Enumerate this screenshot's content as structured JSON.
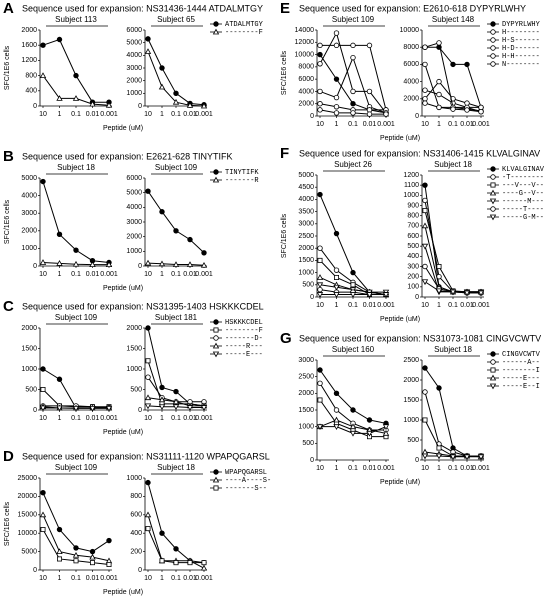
{
  "chart_data": [
    {
      "type": "line",
      "panel": "A",
      "title": "Sequence used for expansion: NS31436-1444 ATDALMTGY",
      "subtitle": "Subject 113",
      "ylabel": "SFC/1E6 cells",
      "xlabel": "Peptide (uM)",
      "categories": [
        "10",
        "1",
        "0.1",
        "0.01",
        "0.001"
      ],
      "ylim": [
        0,
        2000
      ],
      "yticks": [
        0,
        400,
        800,
        1200,
        1600,
        2000
      ],
      "series": [
        {
          "color": "#000000",
          "marker": "circle-filled",
          "values": [
            1600,
            1750,
            800,
            100,
            100
          ]
        },
        {
          "color": "#000000",
          "marker": "triangle-open",
          "values": [
            800,
            200,
            200,
            50,
            20
          ]
        }
      ]
    },
    {
      "type": "line",
      "subtitle": "Subject 65",
      "legend": true,
      "categories": [
        "10",
        "1",
        "0.1",
        "0.01",
        "0.001"
      ],
      "ylim": [
        0,
        6000
      ],
      "yticks": [
        0,
        1000,
        2000,
        3000,
        4000,
        5000,
        6000
      ],
      "series": [
        {
          "name": "ATDALMTGY",
          "color": "#000000",
          "marker": "circle-filled",
          "values": [
            5300,
            3000,
            1000,
            200,
            100
          ]
        },
        {
          "name": "--------F",
          "color": "#000000",
          "marker": "triangle-open",
          "values": [
            4300,
            1500,
            300,
            50,
            0
          ]
        }
      ]
    },
    {
      "type": "line",
      "panel": "B",
      "title": "Sequence used for expansion: E2621-628 TINYTIFK",
      "subtitle": "Subject 18",
      "ylabel": "SFC/1E6 cells",
      "xlabel": "Peptide (uM)",
      "categories": [
        "10",
        "1",
        "0.1",
        "0.01",
        "0.001"
      ],
      "ylim": [
        0,
        5000
      ],
      "yticks": [
        0,
        1000,
        2000,
        3000,
        4000,
        5000
      ],
      "series": [
        {
          "color": "#000000",
          "marker": "circle-filled",
          "values": [
            4800,
            1800,
            900,
            300,
            200
          ]
        },
        {
          "color": "#000000",
          "marker": "triangle-open",
          "values": [
            200,
            150,
            100,
            80,
            80
          ]
        }
      ]
    },
    {
      "type": "line",
      "subtitle": "Subject 109",
      "legend": true,
      "categories": [
        "10",
        "1",
        "0.1",
        "0.01",
        "0.001"
      ],
      "ylim": [
        0,
        6000
      ],
      "yticks": [
        0,
        1000,
        2000,
        3000,
        4000,
        5000,
        6000
      ],
      "series": [
        {
          "name": "TINYTIFK",
          "color": "#000000",
          "marker": "circle-filled",
          "values": [
            5100,
            3700,
            2400,
            1800,
            900
          ]
        },
        {
          "name": "-------R",
          "color": "#000000",
          "marker": "triangle-open",
          "values": [
            200,
            150,
            100,
            100,
            50
          ]
        }
      ]
    },
    {
      "type": "line",
      "panel": "C",
      "title": "Sequence used for expansion: NS31395-1403 HSKKKCDEL",
      "subtitle": "Subject 109",
      "xlabel": "Peptide (uM)",
      "categories": [
        "10",
        "1",
        "0.1",
        "0.01",
        "0.001"
      ],
      "ylim": [
        0,
        2000
      ],
      "yticks": [
        0,
        500,
        1000,
        1500,
        2000
      ],
      "series": [
        {
          "color": "#000000",
          "marker": "circle-filled",
          "values": [
            1000,
            750,
            50,
            50,
            50
          ]
        },
        {
          "color": "#000000",
          "marker": "square-open",
          "values": [
            500,
            100,
            80,
            80,
            80
          ]
        },
        {
          "color": "#000000",
          "marker": "circle-open",
          "values": [
            100,
            100,
            100,
            80,
            60
          ]
        },
        {
          "color": "#000000",
          "marker": "triangle-open",
          "values": [
            80,
            50,
            50,
            50,
            50
          ]
        },
        {
          "color": "#000000",
          "marker": "triangle-down-open",
          "values": [
            50,
            50,
            40,
            40,
            40
          ]
        }
      ]
    },
    {
      "type": "line",
      "subtitle": "Subject 181",
      "legend": true,
      "categories": [
        "10",
        "1",
        "0.1",
        "0.01",
        "0.001"
      ],
      "ylim": [
        0,
        2000
      ],
      "yticks": [
        0,
        500,
        1000,
        1500,
        2000
      ],
      "series": [
        {
          "name": "HSKKKCDEL",
          "color": "#000000",
          "marker": "circle-filled",
          "values": [
            2000,
            550,
            450,
            150,
            100
          ]
        },
        {
          "name": "--------F",
          "color": "#000000",
          "marker": "square-open",
          "values": [
            1200,
            150,
            150,
            150,
            100
          ]
        },
        {
          "name": "-------D-",
          "color": "#000000",
          "marker": "circle-open",
          "values": [
            800,
            300,
            200,
            200,
            200
          ]
        },
        {
          "name": "-----R---",
          "color": "#000000",
          "marker": "triangle-open",
          "values": [
            300,
            250,
            200,
            100,
            100
          ]
        },
        {
          "name": "-----E---",
          "color": "#000000",
          "marker": "triangle-down-open",
          "values": [
            100,
            80,
            80,
            60,
            60
          ]
        }
      ]
    },
    {
      "type": "line",
      "panel": "D",
      "title": "Sequence used for expansion: NS31111-1120 WPAPQGARSL",
      "subtitle": "Subject 109",
      "ylabel": "SFC/1E6 cells",
      "xlabel": "Peptide (uM)",
      "categories": [
        "10",
        "1",
        "0.1",
        "0.01",
        "0.001"
      ],
      "ylim": [
        0,
        25000
      ],
      "yticks": [
        0,
        5000,
        10000,
        15000,
        20000,
        25000
      ],
      "series": [
        {
          "color": "#000000",
          "marker": "circle-filled",
          "values": [
            21000,
            11000,
            6000,
            5000,
            8000
          ]
        },
        {
          "color": "#000000",
          "marker": "triangle-open",
          "values": [
            15000,
            5000,
            4000,
            3500,
            2500
          ]
        },
        {
          "color": "#000000",
          "marker": "square-open",
          "values": [
            11000,
            3000,
            2500,
            2000,
            1500
          ]
        }
      ]
    },
    {
      "type": "line",
      "subtitle": "Subject 18",
      "legend": true,
      "categories": [
        "10",
        "1",
        "0.1",
        "0.01",
        "0.001"
      ],
      "ylim": [
        0,
        1000
      ],
      "yticks": [
        0,
        200,
        400,
        600,
        800,
        1000
      ],
      "series": [
        {
          "name": "WPAPQGARSL",
          "color": "#000000",
          "marker": "circle-filled",
          "values": [
            950,
            400,
            230,
            100,
            80
          ]
        },
        {
          "name": "----A----S-",
          "color": "#000000",
          "marker": "triangle-open",
          "values": [
            600,
            100,
            100,
            100,
            20
          ]
        },
        {
          "name": "-------S--",
          "color": "#000000",
          "marker": "square-open",
          "values": [
            450,
            100,
            80,
            80,
            80
          ]
        }
      ]
    },
    {
      "type": "line",
      "panel": "E",
      "title": "Sequence used for expansion: E2610-618 DYPYRLWHY",
      "subtitle": "Subject 109",
      "ylabel": "SFC/1E6 cells",
      "xlabel": "Peptide (uM)",
      "categories": [
        "10",
        "1",
        "0.1",
        "0.01",
        "0.001"
      ],
      "ylim": [
        0,
        14000
      ],
      "yticks": [
        0,
        2000,
        4000,
        6000,
        8000,
        10000,
        12000,
        14000
      ],
      "series": [
        {
          "color": "#000000",
          "marker": "circle-filled",
          "values": [
            10000,
            6000,
            2000,
            1000,
            1000
          ]
        },
        {
          "color": "#000000",
          "marker": "circle-open",
          "values": [
            8500,
            13500,
            4000,
            4000,
            500
          ]
        },
        {
          "color": "#000000",
          "marker": "circle-open",
          "values": [
            11500,
            11500,
            11500,
            11500,
            1000
          ]
        },
        {
          "color": "#000000",
          "marker": "circle-open",
          "values": [
            4000,
            3000,
            9500,
            1500,
            500
          ]
        },
        {
          "color": "#000000",
          "marker": "circle-open",
          "values": [
            2000,
            1500,
            1000,
            1000,
            500
          ]
        },
        {
          "color": "#000000",
          "marker": "circle-open",
          "values": [
            1000,
            500,
            500,
            300,
            300
          ]
        }
      ]
    },
    {
      "type": "line",
      "subtitle": "Subject 148",
      "legend": true,
      "categories": [
        "10",
        "1",
        "0.1",
        "0.01",
        "0.001"
      ],
      "ylim": [
        0,
        10000
      ],
      "yticks": [
        0,
        2000,
        4000,
        6000,
        8000,
        10000
      ],
      "series": [
        {
          "name": "DYPYRLWHY",
          "color": "#000000",
          "marker": "circle-filled",
          "values": [
            8000,
            8000,
            6000,
            6000,
            1000
          ]
        },
        {
          "name": "H--------",
          "color": "#000000",
          "marker": "circle-open",
          "values": [
            3000,
            2500,
            1500,
            1000,
            1000
          ]
        },
        {
          "name": "H-S------",
          "color": "#000000",
          "marker": "circle-open",
          "values": [
            6000,
            1000,
            1000,
            800,
            600
          ]
        },
        {
          "name": "H-D------",
          "color": "#000000",
          "marker": "circle-open",
          "values": [
            2000,
            4000,
            2000,
            1500,
            1000
          ]
        },
        {
          "name": "H-H------",
          "color": "#000000",
          "marker": "circle-open",
          "values": [
            8000,
            8500,
            1000,
            1000,
            500
          ]
        },
        {
          "name": "N--------",
          "color": "#000000",
          "marker": "circle-open",
          "values": [
            1500,
            1000,
            800,
            700,
            500
          ]
        }
      ]
    },
    {
      "type": "line",
      "panel": "F",
      "title": "Sequence used for expansion: NS31406-1415 KLVALGINAV",
      "subtitle": "Subject 26",
      "ylabel": "SFC/1E6 cells",
      "xlabel": "Peptide (uM)",
      "categories": [
        "10",
        "1",
        "0.1",
        "0.01",
        "0.001"
      ],
      "ylim": [
        0,
        5000
      ],
      "yticks": [
        0,
        500,
        1000,
        1500,
        2000,
        2500,
        3000,
        3500,
        4000,
        4500,
        5000
      ],
      "series": [
        {
          "color": "#000000",
          "marker": "circle-filled",
          "values": [
            4200,
            2600,
            1000,
            200,
            100
          ]
        },
        {
          "color": "#000000",
          "marker": "circle-open",
          "values": [
            2000,
            1100,
            600,
            200,
            100
          ]
        },
        {
          "color": "#000000",
          "marker": "square-open",
          "values": [
            1500,
            800,
            500,
            100,
            100
          ]
        },
        {
          "color": "#000000",
          "marker": "triangle-open",
          "values": [
            800,
            500,
            300,
            200,
            100
          ]
        },
        {
          "color": "#000000",
          "marker": "triangle-down-open",
          "values": [
            500,
            400,
            300,
            200,
            200
          ]
        },
        {
          "color": "#000000",
          "marker": "circle-open",
          "values": [
            300,
            200,
            200,
            100,
            100
          ]
        },
        {
          "color": "#000000",
          "marker": "triangle-down-open",
          "values": [
            100,
            100,
            100,
            100,
            100
          ]
        }
      ]
    },
    {
      "type": "line",
      "subtitle": "Subject 18",
      "legend": true,
      "categories": [
        "10",
        "1",
        "0.1",
        "0.01",
        "0.001"
      ],
      "ylim": [
        0,
        1200
      ],
      "yticks": [
        0,
        100,
        200,
        300,
        400,
        500,
        600,
        700,
        800,
        900,
        1000,
        1100,
        1200
      ],
      "series": [
        {
          "name": "KLVALGINAV",
          "color": "#000000",
          "marker": "circle-filled",
          "values": [
            1100,
            100,
            50,
            50,
            50
          ]
        },
        {
          "name": "-T--------",
          "color": "#000000",
          "marker": "circle-open",
          "values": [
            950,
            200,
            50,
            50,
            50
          ]
        },
        {
          "name": "---V---V--",
          "color": "#000000",
          "marker": "square-open",
          "values": [
            850,
            300,
            60,
            50,
            50
          ]
        },
        {
          "name": "----G--V--",
          "color": "#000000",
          "marker": "triangle-open",
          "values": [
            700,
            100,
            50,
            50,
            50
          ]
        },
        {
          "name": "------M---",
          "color": "#000000",
          "marker": "triangle-down-open",
          "values": [
            500,
            50,
            50,
            50,
            50
          ]
        },
        {
          "name": "-----T----",
          "color": "#000000",
          "marker": "circle-open",
          "values": [
            300,
            80,
            50,
            40,
            40
          ]
        },
        {
          "name": "-----G-M--",
          "color": "#000000",
          "marker": "triangle-down-open",
          "values": [
            150,
            60,
            50,
            40,
            40
          ]
        }
      ]
    },
    {
      "type": "line",
      "panel": "G",
      "title": "Sequence used for expansion: NS31073-1081 CINGVCWTV",
      "subtitle": "Subject 160",
      "xlabel": "Peptide (uM)",
      "categories": [
        "10",
        "1",
        "0.1",
        "0.01",
        "0.001"
      ],
      "ylim": [
        0,
        3000
      ],
      "yticks": [
        0,
        500,
        1000,
        1500,
        2000,
        2500,
        3000
      ],
      "series": [
        {
          "color": "#000000",
          "marker": "circle-filled",
          "values": [
            2700,
            2000,
            1500,
            1200,
            1100
          ]
        },
        {
          "color": "#000000",
          "marker": "circle-open",
          "values": [
            2300,
            1500,
            1100,
            900,
            900
          ]
        },
        {
          "color": "#000000",
          "marker": "square-open",
          "values": [
            1800,
            1100,
            900,
            700,
            700
          ]
        },
        {
          "color": "#000000",
          "marker": "triangle-open",
          "values": [
            1000,
            1200,
            1000,
            900,
            800
          ]
        },
        {
          "color": "#000000",
          "marker": "triangle-down-open",
          "values": [
            1000,
            1000,
            800,
            800,
            1000
          ]
        }
      ]
    },
    {
      "type": "line",
      "subtitle": "Subject 18",
      "legend": true,
      "categories": [
        "10",
        "1",
        "0.1",
        "0.01",
        "0.001"
      ],
      "ylim": [
        0,
        2500
      ],
      "yticks": [
        0,
        500,
        1000,
        1500,
        2000,
        2500
      ],
      "series": [
        {
          "name": "CINGVCWTV",
          "color": "#000000",
          "marker": "circle-filled",
          "values": [
            2300,
            1800,
            300,
            100,
            100
          ]
        },
        {
          "name": "------A--",
          "color": "#000000",
          "marker": "circle-open",
          "values": [
            1700,
            400,
            200,
            100,
            100
          ]
        },
        {
          "name": "--------I",
          "color": "#000000",
          "marker": "square-open",
          "values": [
            1000,
            300,
            100,
            100,
            100
          ]
        },
        {
          "name": "-----E---",
          "color": "#000000",
          "marker": "triangle-open",
          "values": [
            200,
            150,
            100,
            100,
            80
          ]
        },
        {
          "name": "-----E--I",
          "color": "#000000",
          "marker": "triangle-down-open",
          "values": [
            100,
            100,
            80,
            80,
            80
          ]
        }
      ]
    }
  ]
}
